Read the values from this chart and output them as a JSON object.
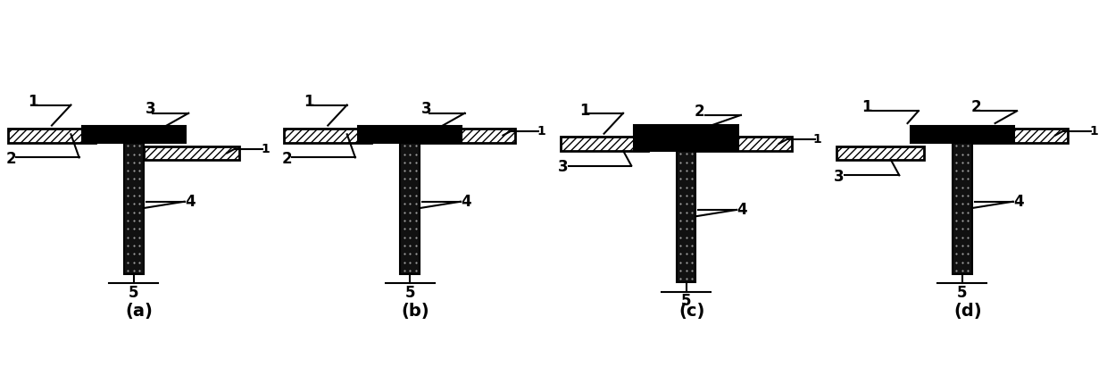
{
  "fig_width": 12.4,
  "fig_height": 4.11,
  "dpi": 100,
  "background": "#ffffff",
  "panel_labels": [
    "(a)",
    "(b)",
    "(c)",
    "(d)"
  ]
}
